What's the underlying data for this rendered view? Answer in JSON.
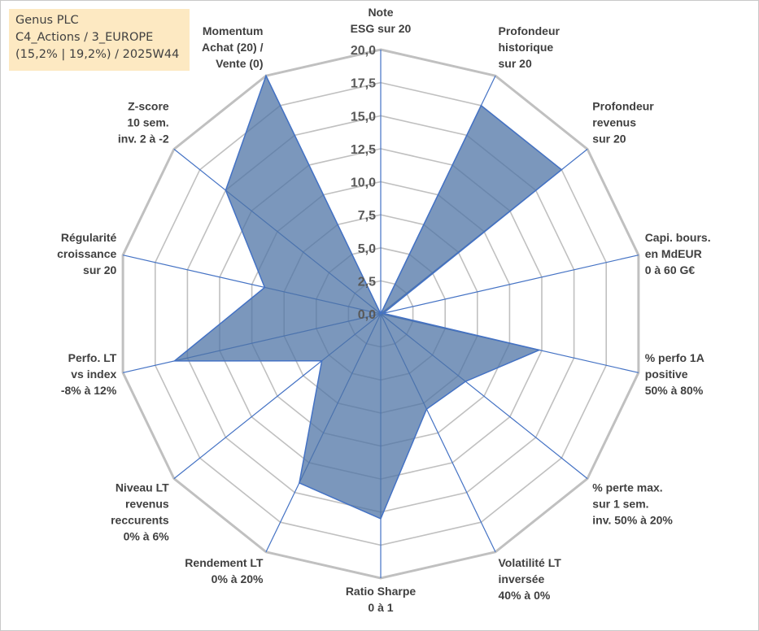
{
  "info": {
    "company": "Genus PLC",
    "category": "C4_Actions / 3_EUROPE",
    "stats": "(15,2% | 19,2%) / 2025W44"
  },
  "chart_data": {
    "type": "radar",
    "title": "",
    "r_range": [
      0,
      20
    ],
    "ticks": [
      "0,0",
      "2,5",
      "5,0",
      "7,5",
      "10,0",
      "12,5",
      "15,0",
      "17,5",
      "20,0"
    ],
    "tick_values": [
      0,
      2.5,
      5,
      7.5,
      10,
      12.5,
      15,
      17.5,
      20
    ],
    "grid": true,
    "axes": [
      {
        "lines": [
          "Note",
          "ESG sur 20"
        ]
      },
      {
        "lines": [
          "Profondeur",
          "historique",
          "sur 20"
        ]
      },
      {
        "lines": [
          "Profondeur",
          "revenus",
          "sur 20"
        ]
      },
      {
        "lines": [
          "Capi. bours.",
          "en MdEUR",
          "0 à 60 G€"
        ]
      },
      {
        "lines": [
          "% perfo 1A",
          "positive",
          "50% à 80%"
        ]
      },
      {
        "lines": [
          "% perte max.",
          "sur 1 sem.",
          "inv. 50% à 20%"
        ]
      },
      {
        "lines": [
          "Volatilité LT",
          "inversée",
          "40% à 0%"
        ]
      },
      {
        "lines": [
          "Ratio Sharpe",
          "0 à 1"
        ]
      },
      {
        "lines": [
          "Rendement LT",
          "0% à 20%"
        ]
      },
      {
        "lines": [
          "Niveau LT",
          "revenus",
          "reccurents",
          "0% à 6%"
        ]
      },
      {
        "lines": [
          "Perfo. LT",
          "vs index",
          "-8% à 12%"
        ]
      },
      {
        "lines": [
          "Régularité",
          "croissance",
          "sur 20"
        ]
      },
      {
        "lines": [
          "Z-score",
          "10 sem.",
          "inv. 2 à -2"
        ]
      },
      {
        "lines": [
          "Momentum",
          "Achat (20) /",
          "Vente (0)"
        ]
      }
    ],
    "series": [
      {
        "name": "Genus PLC",
        "values": [
          0,
          17.5,
          17.5,
          0.2,
          12.3,
          8.2,
          8.0,
          15.5,
          14.2,
          5.7,
          16.0,
          9.0,
          15.0,
          20.0
        ]
      }
    ],
    "colors": {
      "fill": "#4f74a6",
      "fill_opacity": 0.75,
      "stroke": "#4472c4",
      "grid": "#c0c0c0",
      "spoke": "#4472c4"
    }
  }
}
